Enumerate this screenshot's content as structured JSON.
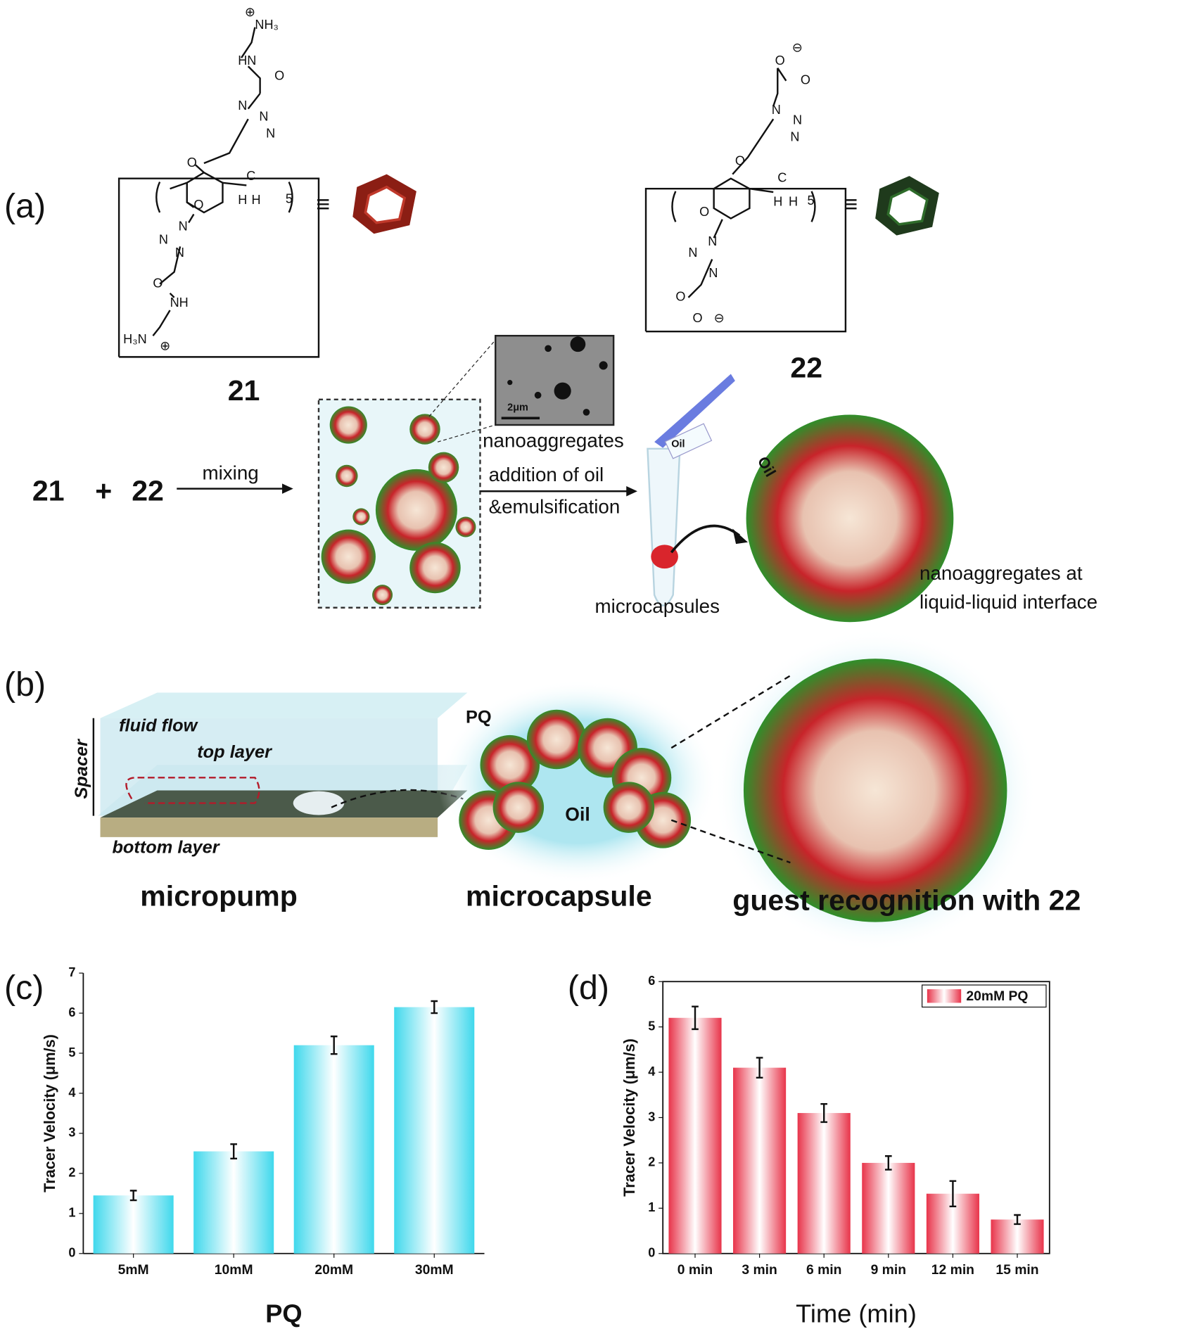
{
  "panel_labels": [
    "(a)",
    "(b)",
    "(c)",
    "(d)"
  ],
  "panel_a": {
    "compound_21": {
      "label": "21",
      "atoms": [
        "⊕",
        "NH₃",
        "HN",
        "O",
        "N",
        "N",
        "N",
        "O",
        "C",
        "H",
        "H",
        "5",
        "O",
        "N",
        "N",
        "N",
        "O",
        "NH",
        "H₃N",
        "⊕"
      ]
    },
    "compound_22": {
      "label": "22",
      "atoms": [
        "⊖",
        "O",
        "O",
        "N",
        "N",
        "N",
        "O",
        "C",
        "H",
        "H",
        "5",
        "O",
        "N",
        "N",
        "N",
        "O",
        "O",
        "⊖"
      ]
    },
    "equiv": "≡",
    "reaction": {
      "reactant_1": "21",
      "plus": "+",
      "reactant_2": "22",
      "step_1": "mixing",
      "step_2": [
        "addition of oil",
        "&emulsification"
      ],
      "inset_scale": "2μm",
      "nanoaggregates": "nanoaggregates",
      "tube_oil": "Oil",
      "microcapsules": "microcapsules",
      "sphere_oil": "Oil",
      "interface": [
        "nanoaggregates at",
        "liquid-liquid interface"
      ]
    }
  },
  "panel_b": {
    "fluid_flow": "fluid flow",
    "top_layer": "top layer",
    "spacer": "Spacer",
    "bottom_layer": "bottom layer",
    "pq": "PQ",
    "oil": "Oil",
    "captions": [
      "micropump",
      "microcapsule",
      "guest recognition with 22"
    ]
  },
  "chart_data": [
    {
      "type": "bar",
      "categories": [
        "5mM",
        "10mM",
        "20mM",
        "30mM"
      ],
      "values": [
        1.45,
        2.55,
        5.2,
        6.15
      ],
      "errors": [
        0.12,
        0.18,
        0.22,
        0.15
      ],
      "color": "#3fd8ec",
      "ylim": [
        0,
        7
      ],
      "yticks": [
        0,
        1,
        2,
        3,
        4,
        5,
        6,
        7
      ],
      "xlabel": "PQ",
      "ylabel": "Tracer Velocity (μm/s)"
    },
    {
      "type": "bar",
      "categories": [
        "0 min",
        "3 min",
        "6 min",
        "9 min",
        "12 min",
        "15 min"
      ],
      "series": [
        {
          "name": "20mM PQ",
          "color": "#e8344a",
          "values": [
            5.2,
            4.1,
            3.1,
            2.0,
            1.32,
            0.75
          ],
          "errors": [
            0.25,
            0.22,
            0.2,
            0.15,
            0.28,
            0.1
          ]
        }
      ],
      "ylim": [
        0,
        6
      ],
      "yticks": [
        0,
        1,
        2,
        3,
        4,
        5,
        6
      ],
      "xlabel": "Time (min)",
      "ylabel": "Tracer Velocity (μm/s)",
      "legend": "upper right"
    }
  ]
}
